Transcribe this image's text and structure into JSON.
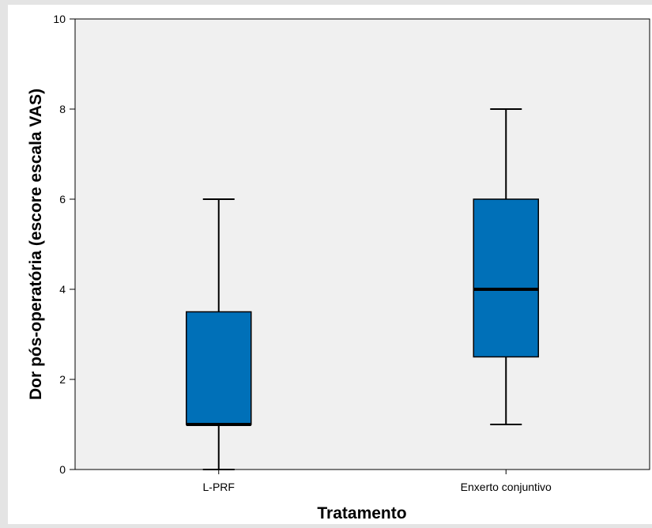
{
  "chart_data": {
    "type": "boxplot",
    "xlabel": "Tratamento",
    "ylabel": "Dor pós-operatória (escore escala VAS)",
    "ylim": [
      0,
      10
    ],
    "yticks": [
      "0",
      "2",
      "4",
      "6",
      "8",
      "10"
    ],
    "grid": false,
    "categories": [
      "L-PRF",
      "Enxerto conjuntivo"
    ],
    "boxes": [
      {
        "category": "L-PRF",
        "min": 0,
        "q1": 1,
        "median": 1,
        "q3": 3.5,
        "max": 6
      },
      {
        "category": "Enxerto conjuntivo",
        "min": 1,
        "q1": 2.5,
        "median": 4,
        "q3": 6,
        "max": 8
      }
    ],
    "colors": {
      "box_fill": "#0070b8",
      "plot_bg": "#f0f0f0",
      "line": "#000000"
    }
  }
}
